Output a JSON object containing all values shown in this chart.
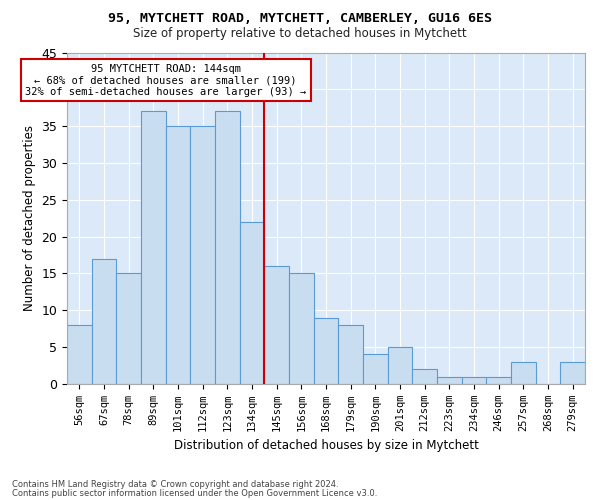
{
  "title1": "95, MYTCHETT ROAD, MYTCHETT, CAMBERLEY, GU16 6ES",
  "title2": "Size of property relative to detached houses in Mytchett",
  "xlabel": "Distribution of detached houses by size in Mytchett",
  "ylabel": "Number of detached properties",
  "categories": [
    "56sqm",
    "67sqm",
    "78sqm",
    "89sqm",
    "101sqm",
    "112sqm",
    "123sqm",
    "134sqm",
    "145sqm",
    "156sqm",
    "168sqm",
    "179sqm",
    "190sqm",
    "201sqm",
    "212sqm",
    "223sqm",
    "234sqm",
    "246sqm",
    "257sqm",
    "268sqm",
    "279sqm"
  ],
  "values": [
    8,
    17,
    15,
    37,
    35,
    35,
    37,
    22,
    16,
    15,
    9,
    8,
    4,
    5,
    2,
    1,
    1,
    1,
    3,
    0,
    3
  ],
  "bar_color": "#c9ddf0",
  "bar_edge_color": "#5b9bd5",
  "vline_color": "#cc0000",
  "vline_idx": 8,
  "annotation_title": "95 MYTCHETT ROAD: 144sqm",
  "annotation_line2": "← 68% of detached houses are smaller (199)",
  "annotation_line3": "32% of semi-detached houses are larger (93) →",
  "annotation_box_color": "#ffffff",
  "annotation_box_edge": "#cc0000",
  "ylim": [
    0,
    45
  ],
  "yticks": [
    0,
    5,
    10,
    15,
    20,
    25,
    30,
    35,
    40,
    45
  ],
  "background_color": "#dce9f8",
  "footer1": "Contains HM Land Registry data © Crown copyright and database right 2024.",
  "footer2": "Contains public sector information licensed under the Open Government Licence v3.0."
}
